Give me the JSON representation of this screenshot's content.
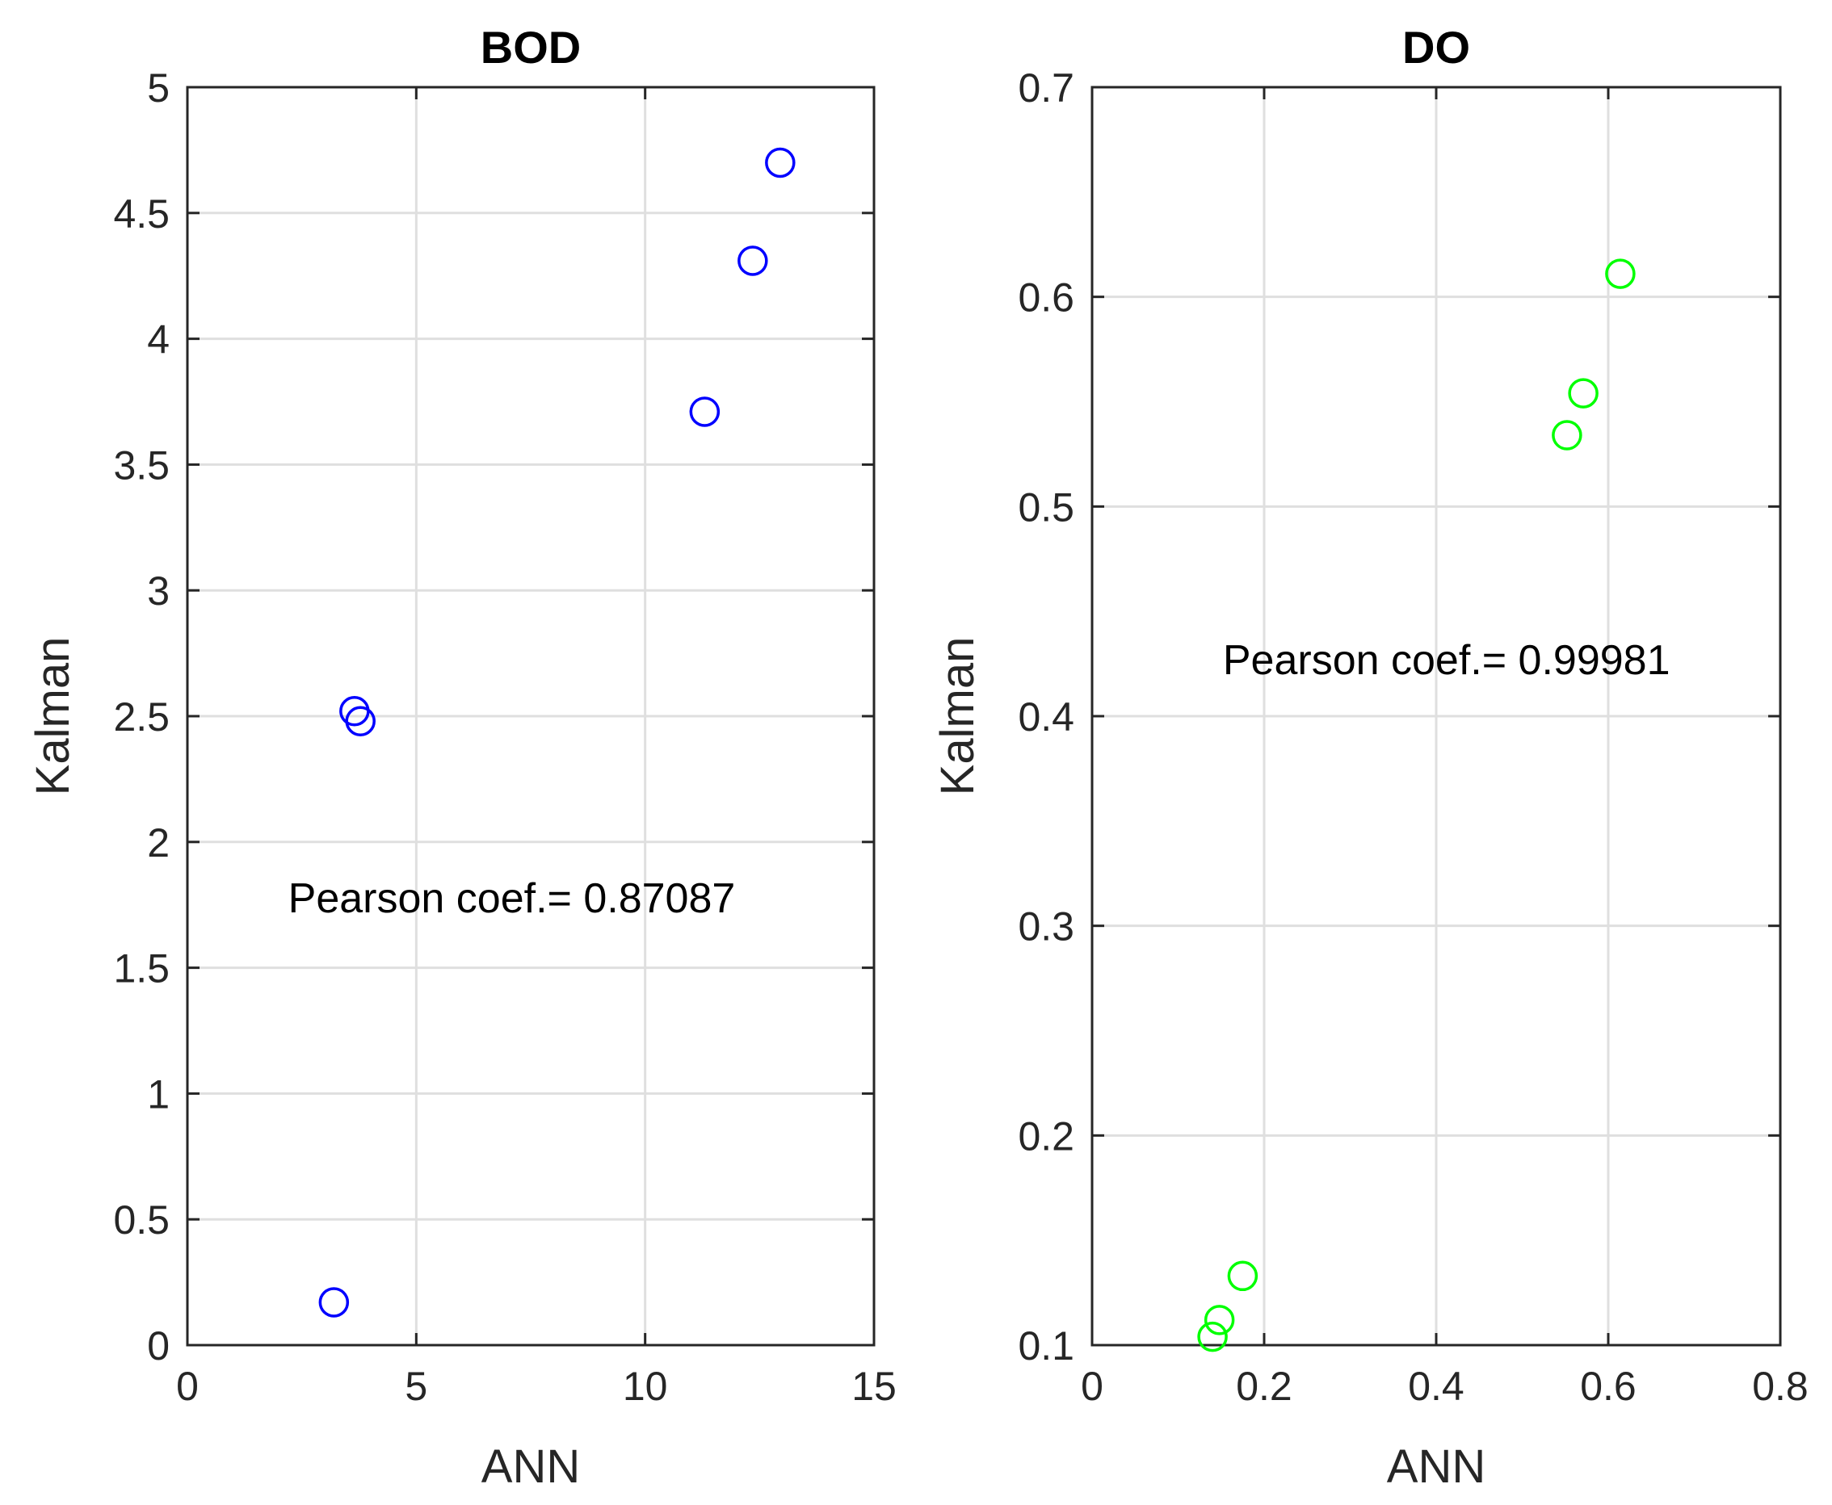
{
  "chart_data": [
    {
      "type": "scatter",
      "title": "BOD",
      "xlabel": "ANN",
      "ylabel": "Kalman",
      "xlim": [
        0,
        15
      ],
      "ylim": [
        0,
        5
      ],
      "xticks": [
        0,
        5,
        10,
        15
      ],
      "yticks": [
        0,
        0.5,
        1,
        1.5,
        2,
        2.5,
        3,
        3.5,
        4,
        4.5,
        5
      ],
      "xtick_labels": [
        "0",
        "5",
        "10",
        "15"
      ],
      "ytick_labels": [
        "0",
        "0.5",
        "1",
        "1.5",
        "2",
        "2.5",
        "3",
        "3.5",
        "4",
        "4.5",
        "5"
      ],
      "grid": true,
      "marker": "circle",
      "color": "#0000ff",
      "x": [
        3.2,
        3.65,
        3.78,
        11.3,
        12.35,
        12.95
      ],
      "y": [
        0.17,
        2.52,
        2.48,
        3.71,
        4.31,
        4.7
      ],
      "annotation": {
        "text": "Pearson coef.= 0.87087",
        "x": 2.2,
        "y": 1.72
      }
    },
    {
      "type": "scatter",
      "title": "DO",
      "xlabel": "ANN",
      "ylabel": "Kalman",
      "xlim": [
        0,
        0.8
      ],
      "ylim": [
        0.1,
        0.7
      ],
      "xticks": [
        0,
        0.2,
        0.4,
        0.6,
        0.8
      ],
      "yticks": [
        0.1,
        0.2,
        0.3,
        0.4,
        0.5,
        0.6,
        0.7
      ],
      "xtick_labels": [
        "0",
        "0.2",
        "0.4",
        "0.6",
        "0.8"
      ],
      "ytick_labels": [
        "0.1",
        "0.2",
        "0.3",
        "0.4",
        "0.5",
        "0.6",
        "0.7"
      ],
      "grid": true,
      "marker": "circle",
      "color": "#00ff00",
      "x": [
        0.14,
        0.148,
        0.175,
        0.552,
        0.571,
        0.614
      ],
      "y": [
        0.104,
        0.112,
        0.133,
        0.534,
        0.554,
        0.611
      ],
      "annotation": {
        "text": "Pearson coef.= 0.99981",
        "x": 0.152,
        "y": 0.42
      }
    }
  ]
}
